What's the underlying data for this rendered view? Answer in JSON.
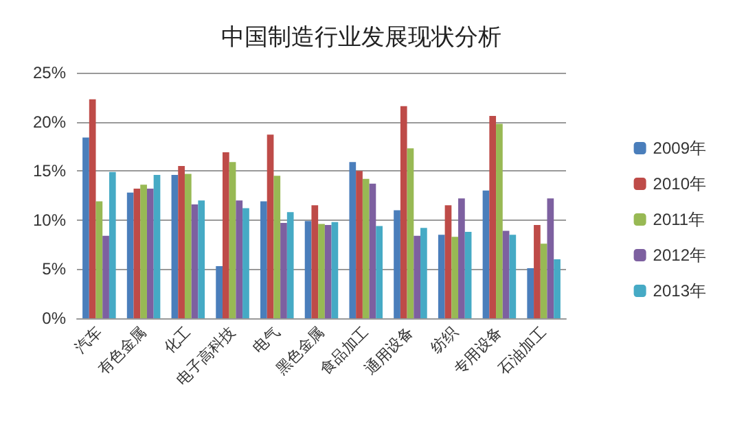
{
  "chart_data": {
    "type": "bar",
    "title": "中国制造行业发展现状分析",
    "categories": [
      "汽车",
      "有色金属",
      "化工",
      "电子高科技",
      "电气",
      "黑色金属",
      "食品加工",
      "通用设备",
      "纺织",
      "专用设备",
      "石油加工"
    ],
    "series": [
      {
        "name": "2009年",
        "color": "#4a7ebb",
        "values": [
          18.4,
          12.8,
          14.6,
          5.3,
          11.9,
          9.9,
          15.9,
          11.0,
          8.5,
          13.0,
          5.1
        ]
      },
      {
        "name": "2010年",
        "color": "#be4b48",
        "values": [
          22.3,
          13.2,
          15.5,
          16.9,
          18.7,
          11.5,
          15.0,
          21.6,
          11.5,
          20.6,
          9.5
        ]
      },
      {
        "name": "2011年",
        "color": "#98b954",
        "values": [
          11.9,
          13.6,
          14.7,
          15.9,
          14.5,
          9.6,
          14.2,
          17.3,
          8.3,
          19.8,
          7.6
        ]
      },
      {
        "name": "2012年",
        "color": "#7d60a0",
        "values": [
          8.4,
          13.2,
          11.6,
          12.0,
          9.7,
          9.5,
          13.7,
          8.4,
          12.2,
          8.9,
          12.2
        ]
      },
      {
        "name": "2013年",
        "color": "#46aac5",
        "values": [
          14.9,
          14.6,
          12.0,
          11.2,
          10.8,
          9.8,
          9.4,
          9.2,
          8.8,
          8.5,
          6.0
        ]
      }
    ],
    "ylim": [
      0,
      25
    ],
    "yticks": [
      {
        "value": 0,
        "label": "0%"
      },
      {
        "value": 5,
        "label": "5%"
      },
      {
        "value": 10,
        "label": "10%"
      },
      {
        "value": 15,
        "label": "15%"
      },
      {
        "value": 20,
        "label": "20%"
      },
      {
        "value": 25,
        "label": "25%"
      }
    ],
    "grid": "y",
    "legend": "right"
  }
}
